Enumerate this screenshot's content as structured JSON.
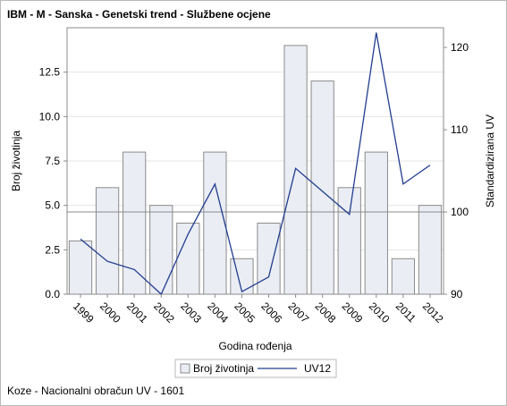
{
  "title": "IBM - M - Sanska - Genetski trend - Službene ocjene",
  "footnote": "Koze - Nacionalni obračun UV - 1601",
  "colors": {
    "bar_fill": "#eaedf4",
    "bar_stroke": "#8b8b8b",
    "line": "#213d8f",
    "reference_line": "#8b8b8b",
    "grid": "#e4e4e4",
    "axis": "#8b8b8b"
  },
  "chart_data": {
    "type": "bar",
    "categories": [
      "1999",
      "2000",
      "2001",
      "2002",
      "2003",
      "2004",
      "2005",
      "2006",
      "2007",
      "2008",
      "2009",
      "2010",
      "2011",
      "2012"
    ],
    "series": [
      {
        "name": "Broj životinja",
        "type": "bar",
        "axis": "left",
        "values": [
          3,
          6,
          8,
          5,
          4,
          8,
          2,
          4,
          14,
          12,
          6,
          8,
          2,
          5
        ]
      },
      {
        "name": "UV12",
        "type": "line",
        "axis": "right",
        "values": [
          96.7,
          94.0,
          93.0,
          90.0,
          97.3,
          103.4,
          90.3,
          92.1,
          105.3,
          102.5,
          99.7,
          121.8,
          103.4,
          105.7
        ]
      }
    ],
    "reference_line": {
      "axis": "right",
      "value": 100
    },
    "xlabel": "Godina rođenja",
    "ylabel": "Broj životinja",
    "y2label": "Standardizirana UV",
    "ylim": [
      0,
      15
    ],
    "y2lim": [
      90,
      122.4
    ],
    "yticks": [
      "0.0",
      "2.5",
      "5.0",
      "7.5",
      "10.0",
      "12.5"
    ],
    "y2ticks": [
      "90",
      "100",
      "110",
      "120"
    ],
    "grid": "horizontal",
    "legend_position": "bottom"
  }
}
